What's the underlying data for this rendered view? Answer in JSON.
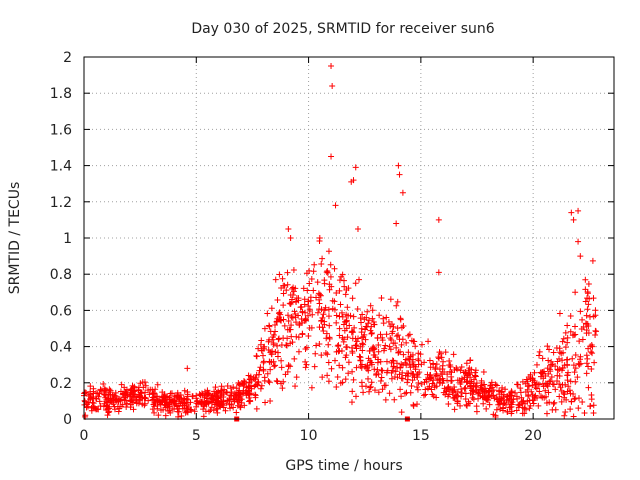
{
  "chart_data": {
    "type": "scatter",
    "title": "Day 030 of 2025, SRMTID for receiver sun6",
    "xlabel": "GPS time / hours",
    "ylabel": "SRMTID / TECUs",
    "xlim": [
      0,
      23.6
    ],
    "ylim": [
      0,
      2
    ],
    "grid": true,
    "x_ticks": [
      0,
      5,
      10,
      15,
      20
    ],
    "x_tick_labels": [
      "0",
      "5",
      "10",
      "15",
      "20"
    ],
    "y_ticks": [
      0,
      0.2,
      0.4,
      0.6,
      0.8,
      1,
      1.2,
      1.4,
      1.6,
      1.8,
      2
    ],
    "y_tick_labels": [
      "0",
      "0.2",
      "0.4",
      "0.6",
      "0.8",
      "1",
      "1.2",
      "1.4",
      "1.6",
      "1.8",
      "2"
    ],
    "marker": "+",
    "color": "#ff0000",
    "series": [
      {
        "name": "SRMTID",
        "envelope_hours": [
          0,
          0.5,
          1,
          1.5,
          2,
          2.5,
          3,
          3.5,
          4,
          4.5,
          5,
          5.5,
          6,
          6.5,
          7,
          7.5,
          8,
          8.5,
          9,
          9.5,
          10,
          10.5,
          11,
          11.5,
          12,
          12.5,
          13,
          13.5,
          14,
          14.5,
          15,
          15.5,
          16,
          16.5,
          17,
          17.5,
          18,
          18.5,
          19,
          19.5,
          20,
          20.5,
          21,
          21.5,
          22,
          22.5,
          22.8
        ],
        "envelope_median": [
          0.08,
          0.1,
          0.12,
          0.1,
          0.12,
          0.13,
          0.12,
          0.1,
          0.08,
          0.08,
          0.09,
          0.1,
          0.11,
          0.12,
          0.13,
          0.18,
          0.3,
          0.45,
          0.55,
          0.5,
          0.55,
          0.6,
          0.55,
          0.5,
          0.45,
          0.4,
          0.35,
          0.4,
          0.35,
          0.3,
          0.25,
          0.22,
          0.22,
          0.2,
          0.2,
          0.18,
          0.15,
          0.12,
          0.1,
          0.12,
          0.18,
          0.22,
          0.25,
          0.3,
          0.35,
          0.4,
          0.4
        ],
        "envelope_spread": [
          0.05,
          0.06,
          0.06,
          0.05,
          0.06,
          0.06,
          0.06,
          0.05,
          0.05,
          0.05,
          0.05,
          0.05,
          0.05,
          0.05,
          0.06,
          0.08,
          0.15,
          0.2,
          0.25,
          0.22,
          0.25,
          0.28,
          0.28,
          0.25,
          0.22,
          0.2,
          0.18,
          0.2,
          0.18,
          0.15,
          0.12,
          0.1,
          0.1,
          0.1,
          0.1,
          0.08,
          0.07,
          0.06,
          0.05,
          0.07,
          0.1,
          0.12,
          0.15,
          0.2,
          0.25,
          0.28,
          0.28
        ],
        "outliers": [
          {
            "x": 11.0,
            "y": 1.95
          },
          {
            "x": 11.05,
            "y": 1.84
          },
          {
            "x": 11.0,
            "y": 1.45
          },
          {
            "x": 14.0,
            "y": 1.4
          },
          {
            "x": 14.05,
            "y": 1.35
          },
          {
            "x": 12.1,
            "y": 1.39
          },
          {
            "x": 12.0,
            "y": 1.32
          },
          {
            "x": 11.9,
            "y": 1.31
          },
          {
            "x": 14.2,
            "y": 1.25
          },
          {
            "x": 11.2,
            "y": 1.18
          },
          {
            "x": 15.8,
            "y": 1.1
          },
          {
            "x": 21.7,
            "y": 1.14
          },
          {
            "x": 22.0,
            "y": 1.15
          },
          {
            "x": 21.8,
            "y": 1.1
          },
          {
            "x": 15.8,
            "y": 0.81
          },
          {
            "x": 9.1,
            "y": 1.05
          },
          {
            "x": 9.2,
            "y": 1.0
          },
          {
            "x": 10.5,
            "y": 1.0
          },
          {
            "x": 12.2,
            "y": 1.05
          },
          {
            "x": 22.0,
            "y": 0.98
          },
          {
            "x": 22.1,
            "y": 0.9
          },
          {
            "x": 13.9,
            "y": 1.08
          },
          {
            "x": 4.6,
            "y": 0.28
          },
          {
            "x": 6.8,
            "y": 0.0
          },
          {
            "x": 14.4,
            "y": 0.0
          }
        ]
      }
    ]
  }
}
